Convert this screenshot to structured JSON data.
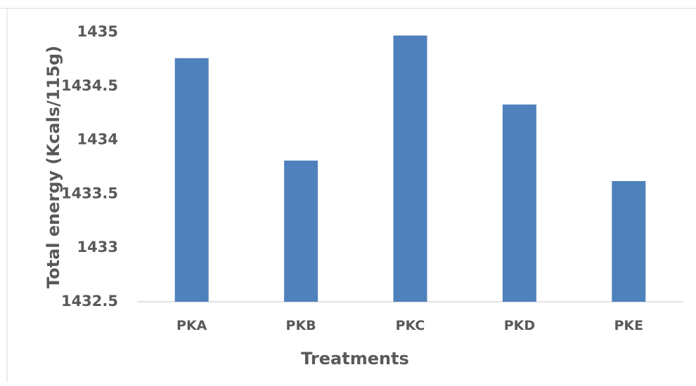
{
  "chart_data": {
    "type": "bar",
    "categories": [
      "PKA",
      "PKB",
      "PKC",
      "PKD",
      "PKE"
    ],
    "values": [
      1434.76,
      1433.81,
      1434.97,
      1434.33,
      1433.62
    ],
    "xlabel": "Treatments",
    "ylabel": "Total energy (Kcals/115g)",
    "ylim": [
      1432.5,
      1435
    ],
    "yticks": [
      "1432.5",
      "1433",
      "1433.5",
      "1434",
      "1434.5",
      "1435"
    ],
    "grid": false,
    "legend": "none",
    "colors": {
      "bar": "#4f81bd",
      "axis": "#d9d9d9",
      "text": "#595959"
    }
  }
}
